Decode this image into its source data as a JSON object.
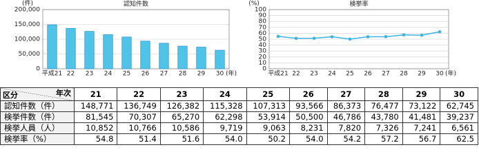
{
  "chart_data": [
    {
      "type": "bar",
      "title": "認知件数",
      "y_label": "(件)",
      "x_label": "(年)",
      "categories": [
        "平成21",
        "22",
        "23",
        "24",
        "25",
        "26",
        "27",
        "28",
        "29",
        "30"
      ],
      "values": [
        148771,
        136749,
        126382,
        115328,
        107313,
        93566,
        86373,
        76477,
        73122,
        62745
      ],
      "color": "#4fc4e8",
      "stroke": "#2a8fc8",
      "ylim": [
        0,
        200000
      ],
      "yticks": [
        0,
        {
          "value": 50000,
          "label": "50,000"
        },
        {
          "value": 100000,
          "label": "100,000"
        },
        {
          "value": 150000,
          "label": "150,000"
        },
        {
          "value": 200000,
          "label": "200,000"
        }
      ],
      "grid": true
    },
    {
      "type": "line",
      "title": "検挙率",
      "y_label": "(%)",
      "x_label": "(年)",
      "categories": [
        "平成21",
        "22",
        "23",
        "24",
        "25",
        "26",
        "27",
        "28",
        "29",
        "30"
      ],
      "values": [
        54.8,
        51.4,
        51.6,
        54.0,
        50.2,
        54.0,
        54.2,
        57.2,
        56.7,
        62.5
      ],
      "color": "#3ab4e0",
      "ylim": [
        0,
        100
      ],
      "yticks": [
        0,
        10,
        20,
        30,
        40,
        50,
        60,
        70,
        80,
        90,
        100
      ],
      "grid": true
    }
  ],
  "table": {
    "corner_row": "区分",
    "corner_col": "年次",
    "columns": [
      "21",
      "22",
      "23",
      "24",
      "25",
      "26",
      "27",
      "28",
      "29",
      "30"
    ],
    "rows": [
      {
        "label": "認知件数（件）",
        "cells": [
          "148,771",
          "136,749",
          "126,382",
          "115,328",
          "107,313",
          "93,566",
          "86,373",
          "76,477",
          "73,122",
          "62,745"
        ]
      },
      {
        "label": "検挙件数（件）",
        "cells": [
          "81,545",
          "70,307",
          "65,270",
          "62,298",
          "53,914",
          "50,500",
          "46,786",
          "43,780",
          "41,481",
          "39,237"
        ]
      },
      {
        "label": "検挙人員（人）",
        "cells": [
          "10,852",
          "10,766",
          "10,586",
          "9,719",
          "9,063",
          "8,231",
          "7,820",
          "7,326",
          "7,241",
          "6,561"
        ]
      },
      {
        "label": "検挙率（%）",
        "cells": [
          "54.8",
          "51.4",
          "51.6",
          "54.0",
          "50.2",
          "54.0",
          "54.2",
          "57.2",
          "56.7",
          "62.5"
        ]
      }
    ]
  }
}
